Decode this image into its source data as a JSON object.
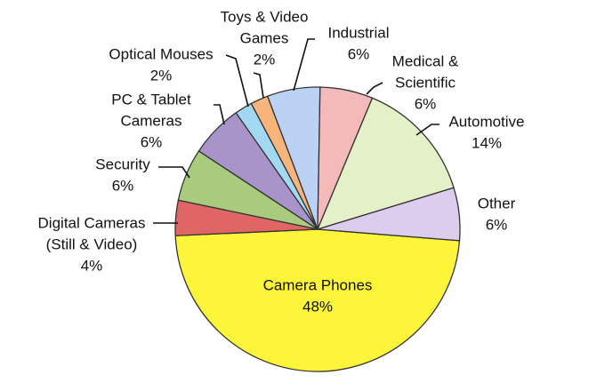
{
  "chart_data": {
    "type": "pie",
    "categories": [
      [
        "Camera Phones"
      ],
      [
        "Digital Cameras",
        "(Still & Video)"
      ],
      [
        "Security"
      ],
      [
        "PC & Tablet",
        "Cameras"
      ],
      [
        "Optical Mouses"
      ],
      [
        "Toys & Video",
        "Games"
      ],
      [
        "Industrial"
      ],
      [
        "Medical &",
        "Scientific"
      ],
      [
        "Automotive"
      ],
      [
        "Other"
      ]
    ],
    "values": [
      48,
      4,
      6,
      6,
      2,
      2,
      6,
      6,
      14,
      6
    ],
    "value_labels": [
      "48%",
      "4%",
      "6%",
      "6%",
      "2%",
      "2%",
      "6%",
      "6%",
      "14%",
      "6%"
    ],
    "colors": [
      "#fcf53a",
      "#e06666",
      "#a9cb7e",
      "#a894c9",
      "#a3d8f2",
      "#f7b57b",
      "#bcd2f5",
      "#f4b9b9",
      "#e4f0c8",
      "#dccdee"
    ]
  }
}
